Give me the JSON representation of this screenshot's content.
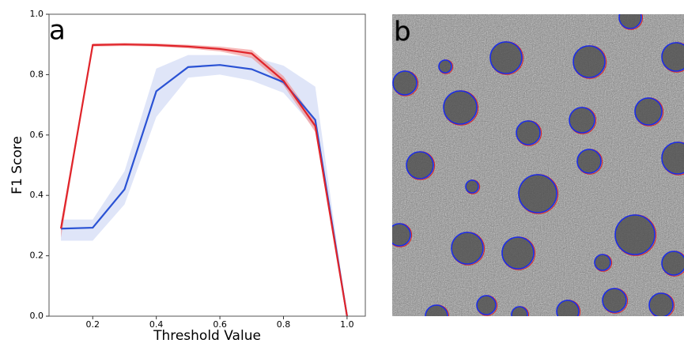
{
  "chart_data": {
    "type": "line",
    "panel_label": "a",
    "xlabel": "Threshold Value",
    "ylabel": "F1 Score",
    "x": [
      0.1,
      0.2,
      0.3,
      0.4,
      0.5,
      0.6,
      0.7,
      0.8,
      0.9,
      1.0
    ],
    "series": [
      {
        "color": "#2a52d4",
        "band_color": "#c9d3f3",
        "values": [
          0.29,
          0.293,
          0.42,
          0.745,
          0.825,
          0.832,
          0.818,
          0.775,
          0.65,
          0.0
        ],
        "lower": [
          0.25,
          0.25,
          0.37,
          0.66,
          0.79,
          0.8,
          0.78,
          0.74,
          0.62,
          0.0
        ],
        "upper": [
          0.32,
          0.32,
          0.48,
          0.82,
          0.865,
          0.865,
          0.86,
          0.83,
          0.76,
          0.0
        ]
      },
      {
        "color": "#e0242a",
        "band_color": "#f08a8a",
        "values": [
          0.29,
          0.898,
          0.9,
          0.898,
          0.893,
          0.885,
          0.87,
          0.78,
          0.63,
          0.0
        ],
        "lower": [
          0.26,
          0.893,
          0.895,
          0.893,
          0.887,
          0.877,
          0.855,
          0.765,
          0.61,
          0.0
        ],
        "upper": [
          0.305,
          0.903,
          0.905,
          0.903,
          0.899,
          0.893,
          0.882,
          0.795,
          0.65,
          0.0
        ]
      }
    ],
    "xlim": [
      0.0625,
      1.0575
    ],
    "ylim": [
      0,
      1
    ],
    "xticks": [
      0.2,
      0.4,
      0.6,
      0.8,
      {
        "value": 1.0,
        "label": "1.0"
      }
    ],
    "yticks": [
      {
        "value": 0,
        "label": "0.0"
      },
      0.2,
      0.4,
      0.6,
      0.8,
      {
        "value": 1,
        "label": "1.0"
      }
    ]
  },
  "image": {
    "panel_label": "b"
  }
}
